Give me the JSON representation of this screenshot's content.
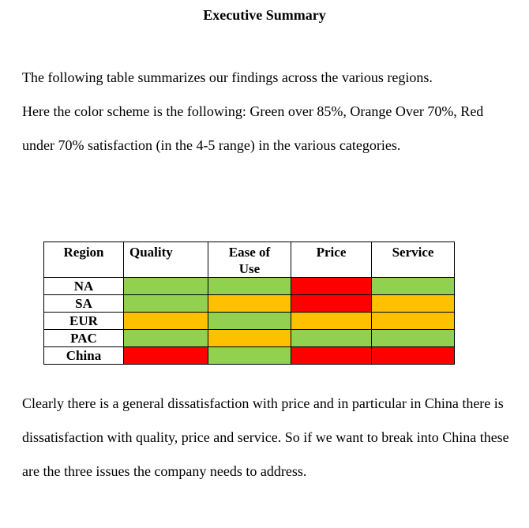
{
  "document": {
    "title": "Executive Summary",
    "paragraphs": {
      "intro": "The following table summarizes our findings across the various regions.",
      "color_scheme": "Here the color scheme is the following: Green over 85%, Orange Over 70%, Red under 70% satisfaction (in the 4-5 range) in the various categories.",
      "conclusion": "Clearly there is a general dissatisfaction with price and in particular in China there is dissatisfaction with quality, price and service. So if we want to break into China these are the three issues the company needs to address."
    }
  },
  "legend_colors": {
    "green": "#92D050",
    "orange": "#FFC000",
    "red": "#FF0000"
  },
  "table": {
    "columns": [
      "Region",
      "Quality",
      "Ease of Use",
      "Price",
      "Service"
    ],
    "rows": [
      {
        "region": "NA",
        "ratings": [
          "green",
          "green",
          "red",
          "green"
        ]
      },
      {
        "region": "SA",
        "ratings": [
          "green",
          "orange",
          "red",
          "orange"
        ]
      },
      {
        "region": "EUR",
        "ratings": [
          "orange",
          "green",
          "orange",
          "orange"
        ]
      },
      {
        "region": "PAC",
        "ratings": [
          "green",
          "orange",
          "green",
          "green"
        ]
      },
      {
        "region": "China",
        "ratings": [
          "red",
          "green",
          "red",
          "red"
        ]
      }
    ]
  }
}
